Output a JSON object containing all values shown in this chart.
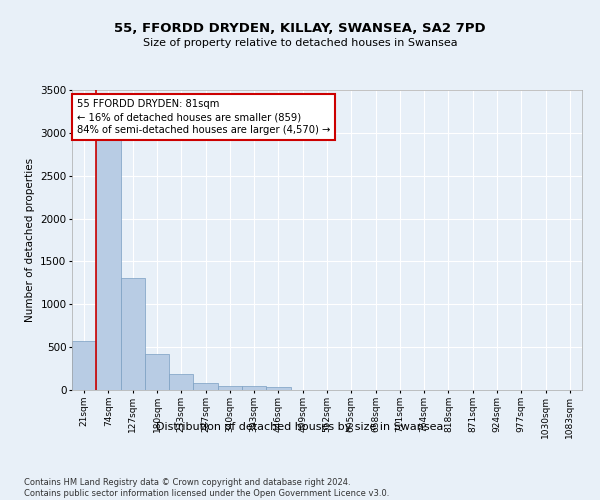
{
  "title": "55, FFORDD DRYDEN, KILLAY, SWANSEA, SA2 7PD",
  "subtitle": "Size of property relative to detached houses in Swansea",
  "xlabel": "Distribution of detached houses by size in Swansea",
  "ylabel": "Number of detached properties",
  "categories": [
    "21sqm",
    "74sqm",
    "127sqm",
    "180sqm",
    "233sqm",
    "287sqm",
    "340sqm",
    "393sqm",
    "446sqm",
    "499sqm",
    "552sqm",
    "605sqm",
    "658sqm",
    "711sqm",
    "764sqm",
    "818sqm",
    "871sqm",
    "924sqm",
    "977sqm",
    "1030sqm",
    "1083sqm"
  ],
  "values": [
    570,
    2920,
    1310,
    415,
    185,
    80,
    50,
    45,
    35,
    0,
    0,
    0,
    0,
    0,
    0,
    0,
    0,
    0,
    0,
    0,
    0
  ],
  "bar_color": "#b8cce4",
  "bar_edge_color": "#7a9fc2",
  "ylim": [
    0,
    3500
  ],
  "yticks": [
    0,
    500,
    1000,
    1500,
    2000,
    2500,
    3000,
    3500
  ],
  "property_line_color": "#cc0000",
  "property_bar_index": 1,
  "annotation_text": "55 FFORDD DRYDEN: 81sqm\n← 16% of detached houses are smaller (859)\n84% of semi-detached houses are larger (4,570) →",
  "annotation_box_facecolor": "#ffffff",
  "annotation_box_edgecolor": "#cc0000",
  "bg_color": "#e8f0f8",
  "grid_color": "#ffffff",
  "footnote": "Contains HM Land Registry data © Crown copyright and database right 2024.\nContains public sector information licensed under the Open Government Licence v3.0."
}
